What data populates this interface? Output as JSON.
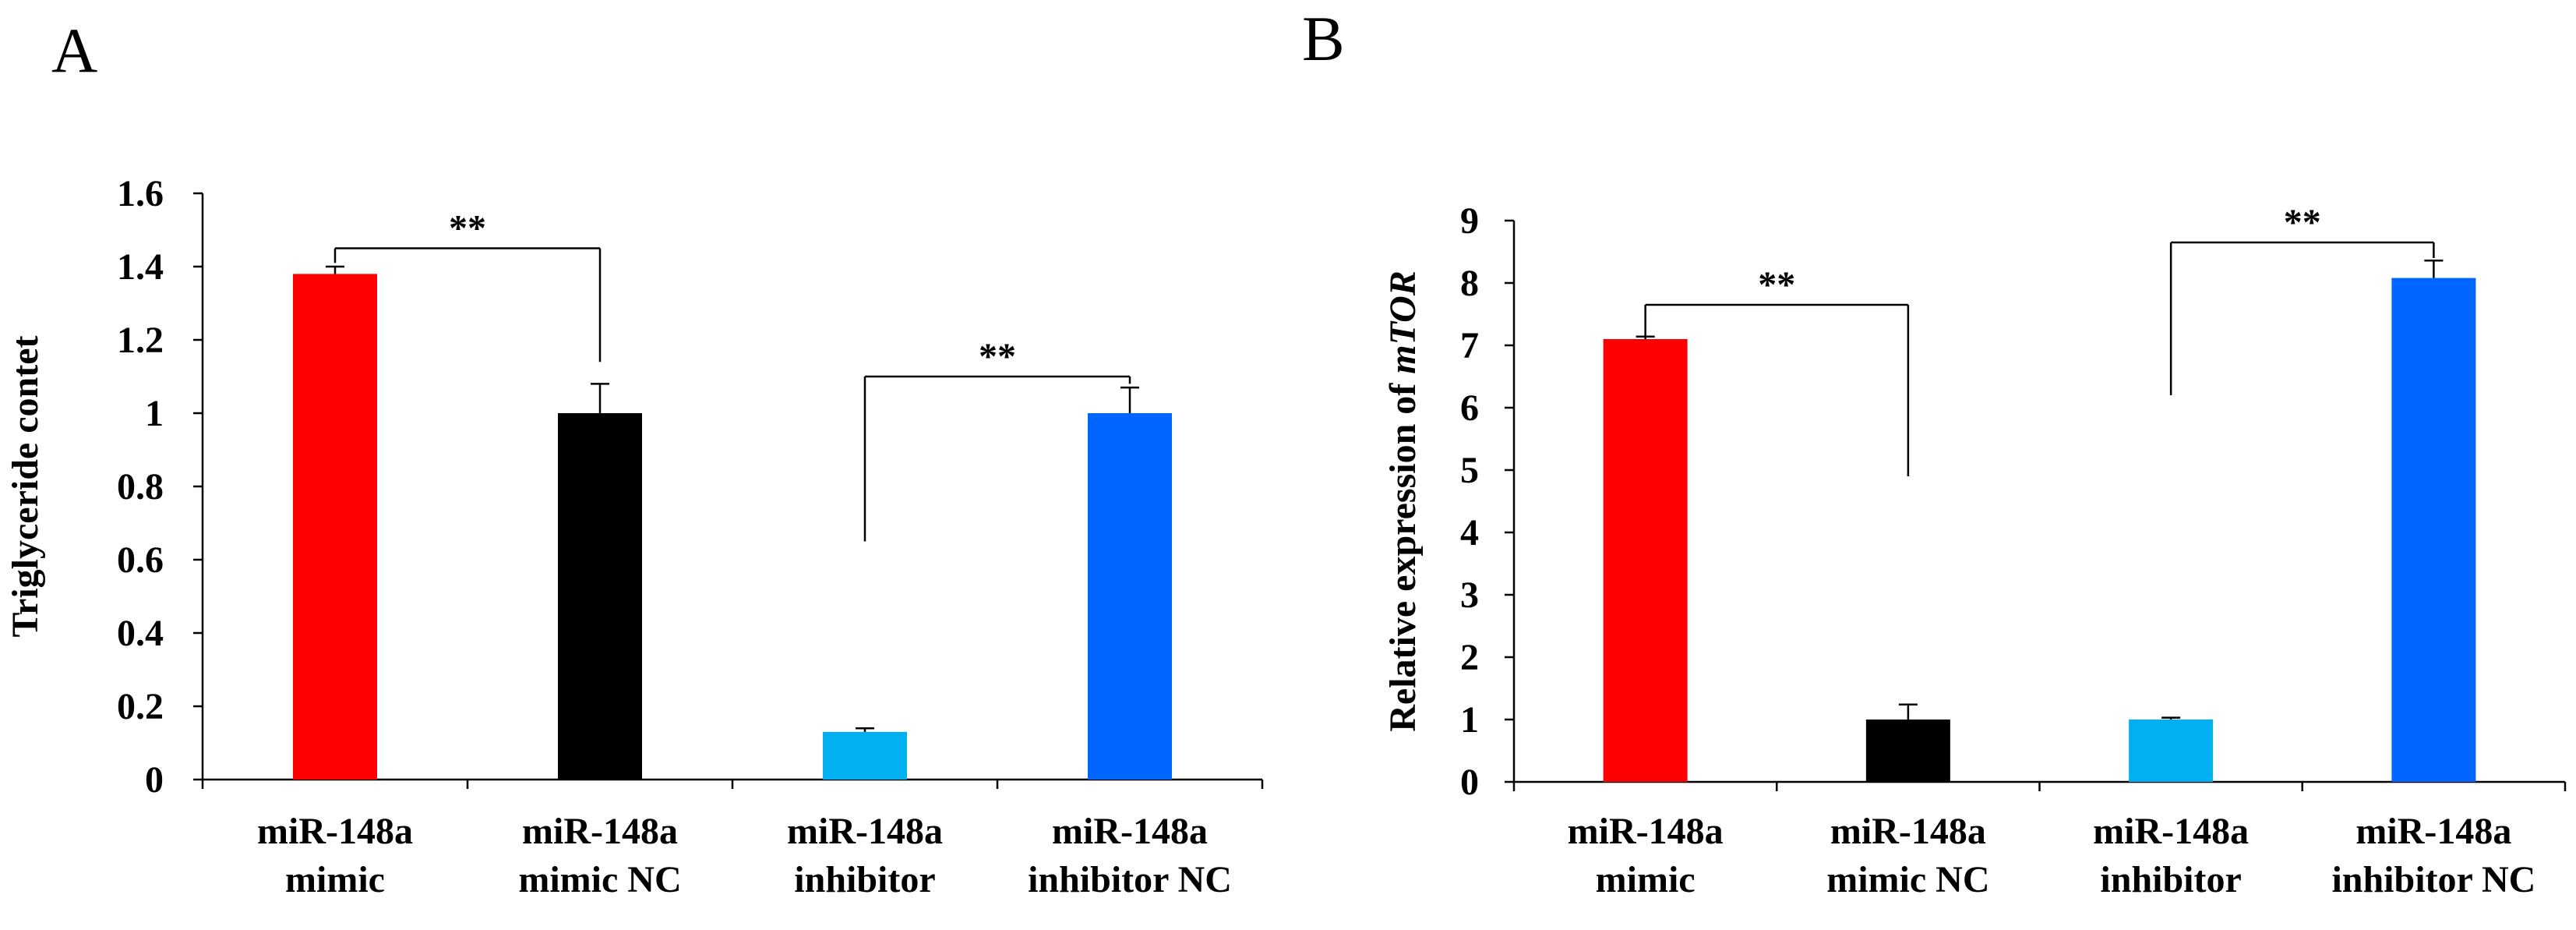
{
  "chart_data": [
    {
      "panel": "A",
      "type": "bar",
      "title": "",
      "xlabel": "",
      "ylabel": "Triglyceride contet",
      "ylim": [
        0,
        1.6
      ],
      "yticks": [
        "0",
        "0.2",
        "0.4",
        "0.6",
        "0.8",
        "1",
        "1.2",
        "1.4",
        "1.6"
      ],
      "ytick_values": [
        0,
        0.2,
        0.4,
        0.6,
        0.8,
        1.0,
        1.2,
        1.4,
        1.6
      ],
      "grid": false,
      "categories": [
        [
          "miR-148a",
          "mimic"
        ],
        [
          "miR-148a",
          "mimic NC"
        ],
        [
          "miR-148a",
          "inhibitor"
        ],
        [
          "miR-148a",
          "inhibitor NC"
        ]
      ],
      "values": [
        1.38,
        1.0,
        0.13,
        1.0
      ],
      "errors": [
        0.02,
        0.08,
        0.01,
        0.07
      ],
      "colors": [
        "#ff0000",
        "#000000",
        "#00b0f0",
        "#0066ff"
      ],
      "significance": [
        {
          "from": 0,
          "to": 1,
          "label": "**",
          "y_data": 1.45,
          "left_end": 1.41,
          "right_end": 1.14
        },
        {
          "from": 2,
          "to": 3,
          "label": "**",
          "y_data": 1.1,
          "left_end": 0.65,
          "right_end": 1.08
        }
      ]
    },
    {
      "panel": "B",
      "type": "bar",
      "title": "",
      "xlabel": "",
      "ylabel_parts": [
        "Relative expression of ",
        "mTOR"
      ],
      "ylim": [
        0,
        9
      ],
      "yticks": [
        "0",
        "1",
        "2",
        "3",
        "4",
        "5",
        "6",
        "7",
        "8",
        "9"
      ],
      "ytick_values": [
        0,
        1,
        2,
        3,
        4,
        5,
        6,
        7,
        8,
        9
      ],
      "grid": false,
      "categories": [
        [
          "miR-148a",
          "mimic"
        ],
        [
          "miR-148a",
          "mimic NC"
        ],
        [
          "miR-148a",
          "inhibitor"
        ],
        [
          "miR-148a",
          "inhibitor NC"
        ]
      ],
      "values": [
        7.1,
        1.0,
        1.0,
        8.08
      ],
      "errors": [
        0.04,
        0.24,
        0.03,
        0.28
      ],
      "colors": [
        "#ff0000",
        "#000000",
        "#00b0f0",
        "#0066ff"
      ],
      "significance": [
        {
          "from": 0,
          "to": 1,
          "label": "**",
          "y_data": 7.65,
          "left_end": 7.14,
          "right_end": 4.9
        },
        {
          "from": 2,
          "to": 3,
          "label": "**",
          "y_data": 8.65,
          "left_end": 6.2,
          "right_end": 8.4
        }
      ]
    }
  ]
}
